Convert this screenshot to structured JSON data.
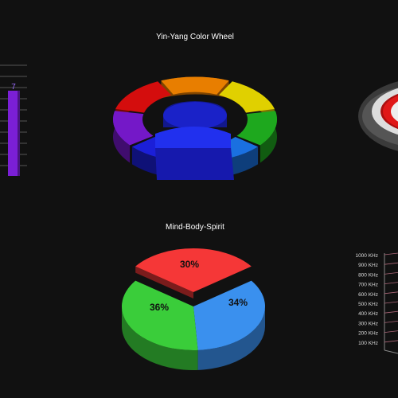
{
  "chart_data": [
    {
      "type": "bar",
      "title": "",
      "categories": [
        ""
      ],
      "values": [
        7
      ],
      "data_labels": [
        "7"
      ],
      "colors": {
        "bar": "#7b1fd6"
      }
    },
    {
      "type": "pie",
      "variant": "3d-ring",
      "title": "Yin-Yang Color Wheel",
      "labels": [
        "",
        "",
        "",
        "",
        "",
        "",
        ""
      ],
      "values": [
        1,
        1,
        1,
        1,
        1,
        1,
        1
      ],
      "colors": [
        "#d40d0d",
        "#e87e00",
        "#e0d000",
        "#1ea81e",
        "#1a70e0",
        "#1b1fd8",
        "#7418c8"
      ],
      "center_color": "#1a22c8"
    },
    {
      "type": "pie",
      "variant": "3d-target",
      "title": "",
      "colors": [
        "#555555",
        "#dddddd",
        "#e01818"
      ]
    },
    {
      "type": "pie",
      "variant": "3d",
      "title": "Mind-Body-Spirit",
      "labels": [
        "",
        "",
        ""
      ],
      "values": [
        30,
        34,
        36
      ],
      "data_labels": [
        "30%",
        "34%",
        "36%"
      ],
      "colors": [
        "#f53737",
        "#3a90ee",
        "#3acd3a"
      ]
    },
    {
      "type": "bar",
      "variant": "3d-axis",
      "title": "",
      "y_tick_labels": [
        "1000 KHz",
        "900 KHz",
        "800 KHz",
        "700 KHz",
        "600 KHz",
        "500 KHz",
        "400 KHz",
        "300 KHz",
        "200 KHz",
        "100 KHz"
      ],
      "ylim": [
        100,
        1000
      ]
    }
  ]
}
